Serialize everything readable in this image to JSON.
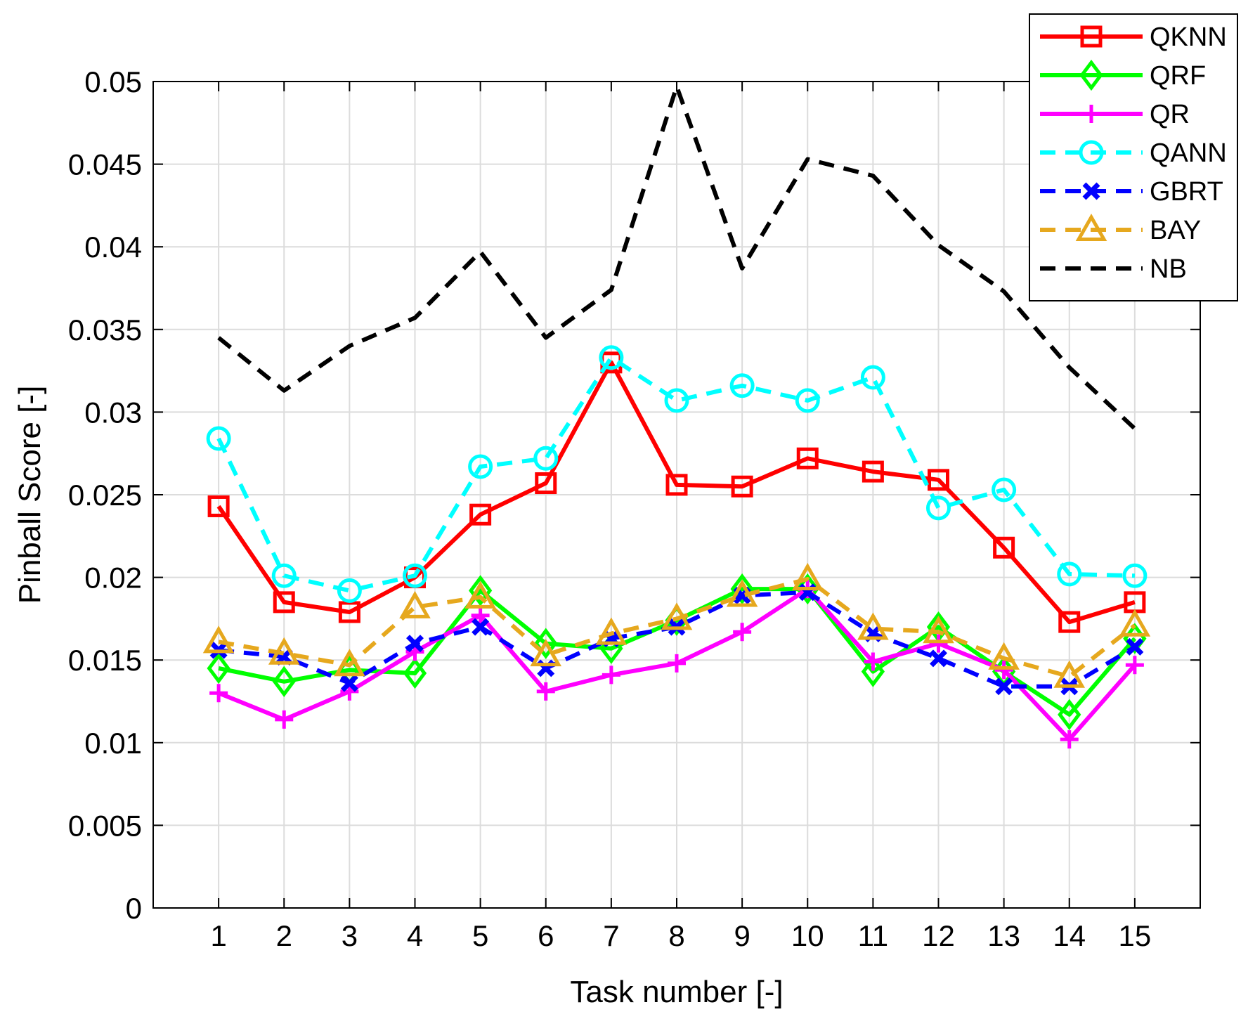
{
  "chart_data": {
    "type": "line",
    "title": "",
    "xlabel": "Task number [-]",
    "ylabel": "Pinball Score [-]",
    "x": [
      1,
      2,
      3,
      4,
      5,
      6,
      7,
      8,
      9,
      10,
      11,
      12,
      13,
      14,
      15
    ],
    "xlim": [
      0,
      16
    ],
    "ylim": [
      0,
      0.05
    ],
    "yticks": [
      0,
      0.005,
      0.01,
      0.015,
      0.02,
      0.025,
      0.03,
      0.035,
      0.04,
      0.045,
      0.05
    ],
    "ytick_labels": [
      "0",
      "0.005",
      "0.01",
      "0.015",
      "0.02",
      "0.025",
      "0.03",
      "0.035",
      "0.04",
      "0.045",
      "0.05"
    ],
    "xtick_labels": [
      "1",
      "2",
      "3",
      "4",
      "5",
      "6",
      "7",
      "8",
      "9",
      "10",
      "11",
      "12",
      "13",
      "14",
      "15"
    ],
    "grid": true,
    "legend_position": "top-right",
    "series": [
      {
        "name": "QKNN",
        "color": "#ff0000",
        "dash": "solid",
        "marker": "square",
        "values": [
          0.0243,
          0.0185,
          0.0179,
          0.02,
          0.0238,
          0.0257,
          0.033,
          0.0256,
          0.0255,
          0.0272,
          0.0264,
          0.0259,
          0.0218,
          0.0173,
          0.0185
        ]
      },
      {
        "name": "QRF",
        "color": "#00ff00",
        "dash": "solid",
        "marker": "diamond",
        "values": [
          0.0145,
          0.0137,
          0.0144,
          0.0142,
          0.0192,
          0.016,
          0.0157,
          0.0174,
          0.0193,
          0.0193,
          0.0143,
          0.017,
          0.0143,
          0.0117,
          0.0163
        ]
      },
      {
        "name": "QR",
        "color": "#ff00ff",
        "dash": "solid",
        "marker": "plus",
        "values": [
          0.013,
          0.0114,
          0.0131,
          0.0155,
          0.0177,
          0.0131,
          0.0141,
          0.0148,
          0.0167,
          0.0193,
          0.0149,
          0.016,
          0.0144,
          0.0102,
          0.0147
        ]
      },
      {
        "name": "QANN",
        "color": "#00ffff",
        "dash": "dashed",
        "marker": "circle",
        "values": [
          0.0284,
          0.0201,
          0.0192,
          0.0201,
          0.0267,
          0.0272,
          0.0333,
          0.0307,
          0.0316,
          0.0307,
          0.0321,
          0.0242,
          0.0253,
          0.0202,
          0.0201
        ]
      },
      {
        "name": "GBRT",
        "color": "#0000ff",
        "dash": "dashed",
        "marker": "x",
        "values": [
          0.0156,
          0.0152,
          0.0136,
          0.016,
          0.017,
          0.0145,
          0.0163,
          0.017,
          0.0189,
          0.0191,
          0.0166,
          0.0151,
          0.0134,
          0.0134,
          0.0158
        ]
      },
      {
        "name": "BAY",
        "color": "#e6a81e",
        "dash": "dashed",
        "marker": "triangle",
        "values": [
          0.0161,
          0.0154,
          0.0147,
          0.0182,
          0.0188,
          0.0153,
          0.0166,
          0.0175,
          0.0189,
          0.0199,
          0.0169,
          0.0167,
          0.0151,
          0.014,
          0.0171
        ]
      },
      {
        "name": "NB",
        "color": "#000000",
        "dash": "dashed",
        "marker": "none",
        "values": [
          0.0345,
          0.0313,
          0.034,
          0.0357,
          0.0397,
          0.0345,
          0.0374,
          0.0497,
          0.0387,
          0.0453,
          0.0443,
          0.0401,
          0.0373,
          0.0327,
          0.029
        ]
      }
    ]
  }
}
